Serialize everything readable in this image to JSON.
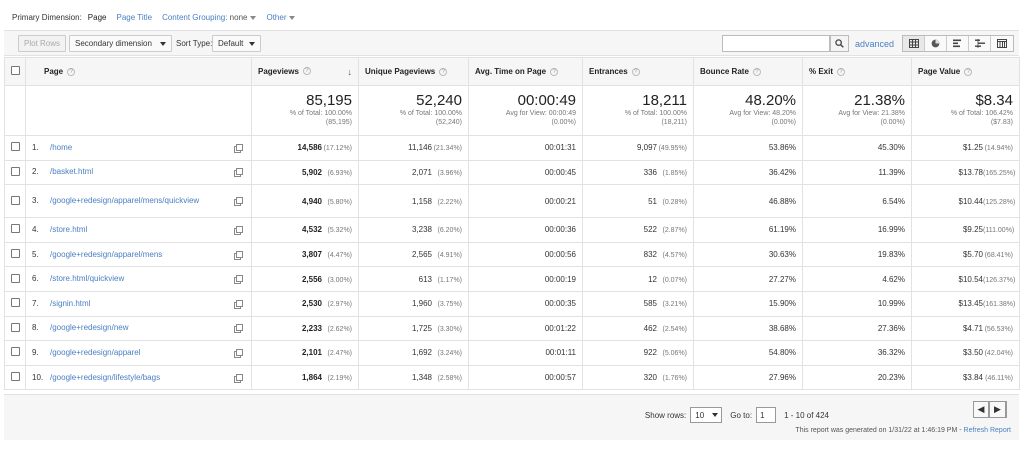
{
  "primary_dimension": {
    "label": "Primary Dimension:",
    "current": "Page",
    "options": [
      "Page Title",
      "Content Grouping:",
      "Other"
    ],
    "content_grouping_value": "none"
  },
  "toolbar": {
    "plot_rows": "Plot Rows",
    "secondary_dimension": "Secondary dimension",
    "sort_type_label": "Sort Type:",
    "sort_type_value": "Default",
    "search_placeholder": "",
    "advanced": "advanced"
  },
  "columns": {
    "page": "Page",
    "pageviews": "Pageviews",
    "unique_pageviews": "Unique Pageviews",
    "avg_time": "Avg. Time on Page",
    "entrances": "Entrances",
    "bounce_rate": "Bounce Rate",
    "exit": "% Exit",
    "page_value": "Page Value"
  },
  "totals": {
    "pageviews": {
      "big": "85,195",
      "l1": "% of Total: 100.00%",
      "l2": "(85,195)"
    },
    "unique_pageviews": {
      "big": "52,240",
      "l1": "% of Total: 100.00%",
      "l2": "(52,240)"
    },
    "avg_time": {
      "big": "00:00:49",
      "l1": "Avg for View: 00:00:49",
      "l2": "(0.00%)"
    },
    "entrances": {
      "big": "18,211",
      "l1": "% of Total: 100.00%",
      "l2": "(18,211)"
    },
    "bounce_rate": {
      "big": "48.20%",
      "l1": "Avg for View: 48.20%",
      "l2": "(0.00%)"
    },
    "exit": {
      "big": "21.38%",
      "l1": "Avg for View: 21.38%",
      "l2": "(0.00%)"
    },
    "page_value": {
      "big": "$8.34",
      "l1": "% of Total: 106.42%",
      "l2": "($7.83)"
    }
  },
  "rows": [
    {
      "idx": "1.",
      "page": "/home",
      "pv": "14,586",
      "pv_pct": "(17.12%)",
      "upv": "11,146",
      "upv_pct": "(21.34%)",
      "time": "00:01:31",
      "ent": "9,097",
      "ent_pct": "(49.95%)",
      "bounce": "53.86%",
      "exit": "45.30%",
      "value": "$1.25",
      "value_pct": "(14.94%)"
    },
    {
      "idx": "2.",
      "page": "/basket.html",
      "pv": "5,902",
      "pv_pct": "(6.93%)",
      "upv": "2,071",
      "upv_pct": "(3.96%)",
      "time": "00:00:45",
      "ent": "336",
      "ent_pct": "(1.85%)",
      "bounce": "36.42%",
      "exit": "11.39%",
      "value": "$13.78",
      "value_pct": "(165.25%)"
    },
    {
      "idx": "3.",
      "page": "/google+redesign/apparel/mens/quickview",
      "pv": "4,940",
      "pv_pct": "(5.80%)",
      "upv": "1,158",
      "upv_pct": "(2.22%)",
      "time": "00:00:21",
      "ent": "51",
      "ent_pct": "(0.28%)",
      "bounce": "46.88%",
      "exit": "6.54%",
      "value": "$10.44",
      "value_pct": "(125.28%)"
    },
    {
      "idx": "4.",
      "page": "/store.html",
      "pv": "4,532",
      "pv_pct": "(5.32%)",
      "upv": "3,238",
      "upv_pct": "(6.20%)",
      "time": "00:00:36",
      "ent": "522",
      "ent_pct": "(2.87%)",
      "bounce": "61.19%",
      "exit": "16.99%",
      "value": "$9.25",
      "value_pct": "(111.00%)"
    },
    {
      "idx": "5.",
      "page": "/google+redesign/apparel/mens",
      "pv": "3,807",
      "pv_pct": "(4.47%)",
      "upv": "2,565",
      "upv_pct": "(4.91%)",
      "time": "00:00:56",
      "ent": "832",
      "ent_pct": "(4.57%)",
      "bounce": "30.63%",
      "exit": "19.83%",
      "value": "$5.70",
      "value_pct": "(68.41%)"
    },
    {
      "idx": "6.",
      "page": "/store.html/quickview",
      "pv": "2,556",
      "pv_pct": "(3.00%)",
      "upv": "613",
      "upv_pct": "(1.17%)",
      "time": "00:00:19",
      "ent": "12",
      "ent_pct": "(0.07%)",
      "bounce": "27.27%",
      "exit": "4.62%",
      "value": "$10.54",
      "value_pct": "(126.37%)"
    },
    {
      "idx": "7.",
      "page": "/signin.html",
      "pv": "2,530",
      "pv_pct": "(2.97%)",
      "upv": "1,960",
      "upv_pct": "(3.75%)",
      "time": "00:00:35",
      "ent": "585",
      "ent_pct": "(3.21%)",
      "bounce": "15.90%",
      "exit": "10.99%",
      "value": "$13.45",
      "value_pct": "(161.38%)"
    },
    {
      "idx": "8.",
      "page": "/google+redesign/new",
      "pv": "2,233",
      "pv_pct": "(2.62%)",
      "upv": "1,725",
      "upv_pct": "(3.30%)",
      "time": "00:01:22",
      "ent": "462",
      "ent_pct": "(2.54%)",
      "bounce": "38.68%",
      "exit": "27.36%",
      "value": "$4.71",
      "value_pct": "(56.53%)"
    },
    {
      "idx": "9.",
      "page": "/google+redesign/apparel",
      "pv": "2,101",
      "pv_pct": "(2.47%)",
      "upv": "1,692",
      "upv_pct": "(3.24%)",
      "time": "00:01:11",
      "ent": "922",
      "ent_pct": "(5.06%)",
      "bounce": "54.80%",
      "exit": "36.32%",
      "value": "$3.50",
      "value_pct": "(42.04%)"
    },
    {
      "idx": "10.",
      "page": "/google+redesign/lifestyle/bags",
      "pv": "1,864",
      "pv_pct": "(2.19%)",
      "upv": "1,348",
      "upv_pct": "(2.58%)",
      "time": "00:00:57",
      "ent": "320",
      "ent_pct": "(1.76%)",
      "bounce": "27.96%",
      "exit": "20.23%",
      "value": "$3.84",
      "value_pct": "(46.11%)"
    }
  ],
  "footer": {
    "show_rows_label": "Show rows:",
    "show_rows_value": "10",
    "goto_label": "Go to:",
    "goto_value": "1",
    "range": "1 - 10 of 424",
    "generated_text": "This report was generated on 1/31/22 at 1:46:19 PM -",
    "refresh": "Refresh Report"
  }
}
